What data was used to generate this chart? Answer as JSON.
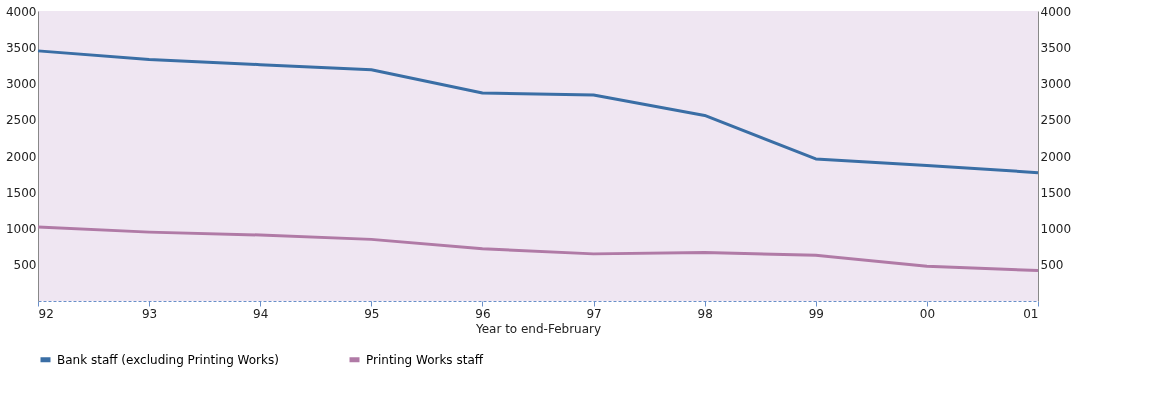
{
  "chart_data": {
    "type": "line",
    "xlabel": "Year to end-February",
    "categories": [
      "92",
      "93",
      "94",
      "95",
      "96",
      "97",
      "98",
      "99",
      "00",
      "01"
    ],
    "series": [
      {
        "name": "Bank staff (excluding Printing Works)",
        "color": "#3a6ea5",
        "values": [
          3450,
          3330,
          3260,
          3190,
          2870,
          2840,
          2560,
          1960,
          1870,
          1770
        ]
      },
      {
        "name": "Printing Works staff",
        "color": "#b07aa6",
        "values": [
          1020,
          950,
          910,
          850,
          720,
          650,
          670,
          630,
          480,
          420
        ]
      }
    ],
    "ylim": [
      0,
      4000
    ],
    "yticks": [
      500,
      1000,
      1500,
      2000,
      2500,
      3000,
      3500,
      4000
    ],
    "y2lim": [
      0,
      4000
    ],
    "y2ticks": [
      500,
      1000,
      1500,
      2000,
      2500,
      3000,
      3500,
      4000
    ],
    "grid": false,
    "legend": "bottom",
    "marker": "none",
    "line_style": "solid"
  }
}
